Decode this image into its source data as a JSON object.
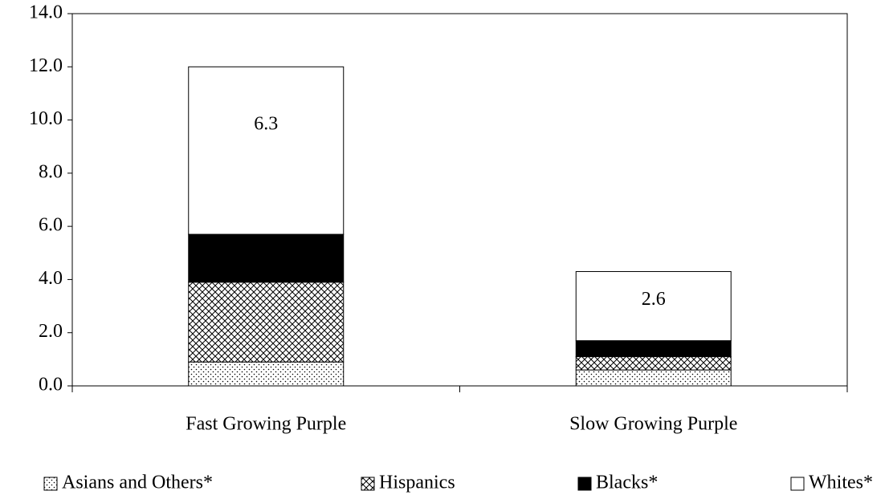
{
  "chart_data": {
    "type": "stacked_bar",
    "categories": [
      "Fast Growing Purple",
      "Slow Growing Purple"
    ],
    "series": [
      {
        "name": "Asians and Others*",
        "color": "#ffffff",
        "pattern": "dots",
        "values": [
          0.9,
          0.6
        ]
      },
      {
        "name": "Hispanics",
        "color": "#ffffff",
        "pattern": "crosshatch",
        "values": [
          3.0,
          0.5
        ]
      },
      {
        "name": "Blacks*",
        "color": "#000000",
        "pattern": "solid",
        "values": [
          1.8,
          0.6
        ]
      },
      {
        "name": "Whites*",
        "color": "#ffffff",
        "pattern": "solid",
        "values": [
          6.3,
          2.6
        ],
        "show_values": true
      }
    ],
    "ylim": [
      0,
      14
    ],
    "yticks": [
      {
        "value": 0,
        "label": "0.0"
      },
      {
        "value": 2,
        "label": "2.0"
      },
      {
        "value": 4,
        "label": "4.0"
      },
      {
        "value": 6,
        "label": "6.0"
      },
      {
        "value": 8,
        "label": "8.0"
      },
      {
        "value": 10,
        "label": "10.0"
      },
      {
        "value": 12,
        "label": "12.0"
      },
      {
        "value": 14,
        "label": "14.0"
      }
    ],
    "legend": "bottom"
  }
}
